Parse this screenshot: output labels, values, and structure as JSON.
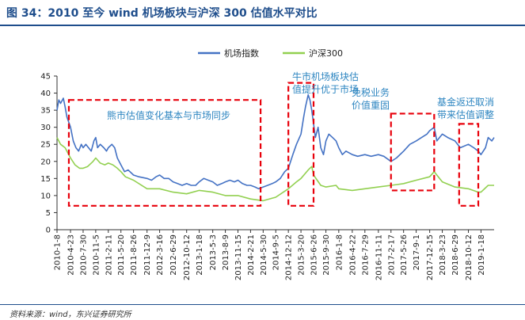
{
  "header": {
    "title": "图 34：2010 至今 wind 机场板块与沪深 300 估值水平对比"
  },
  "footer": {
    "source": "资料来源：wind，东兴证券研究所"
  },
  "chart_data": {
    "type": "line",
    "title": "图 34：2010 至今 wind 机场板块与沪深 300 估值水平对比",
    "xlabel": "",
    "ylabel": "",
    "ylim": [
      0,
      45
    ],
    "yticks": [
      0,
      5,
      10,
      15,
      20,
      25,
      30,
      35,
      40,
      45
    ],
    "grid": false,
    "legend": "top-center",
    "x_tick_labels": [
      "2010-1-8",
      "2010-4-23",
      "2010-7-30",
      "2010-11-5",
      "2011-2-11",
      "2011-5-20",
      "2011-8-26",
      "2011-12-9",
      "2012-3-16",
      "2012-6-29",
      "2012-10-12",
      "2013-1-18",
      "2013-5-3",
      "2013-8-9",
      "2013-11-15",
      "2014-2-21",
      "2014-5-30",
      "2014-9-5",
      "2014-12-12",
      "2015-3-20",
      "2015-6-26",
      "2015-9-30",
      "2016-1-8",
      "2016-4-22",
      "2016-7-29",
      "2016-11-11",
      "2017-2-17",
      "2017-5-26",
      "2017-9-1",
      "2017-12-15",
      "2018-3-23",
      "2018-6-29",
      "2018-10-12",
      "2019-1-18"
    ],
    "x_end": "2019-4-30",
    "series": [
      {
        "name": "机场指数",
        "color": "#4472c4",
        "points": [
          [
            "2010-1-8",
            35
          ],
          [
            "2010-1-22",
            38
          ],
          [
            "2010-2-5",
            37
          ],
          [
            "2010-2-26",
            38.5
          ],
          [
            "2010-3-12",
            36
          ],
          [
            "2010-3-26",
            33
          ],
          [
            "2010-4-23",
            30
          ],
          [
            "2010-5-14",
            26
          ],
          [
            "2010-6-4",
            24
          ],
          [
            "2010-6-25",
            23
          ],
          [
            "2010-7-16",
            25
          ],
          [
            "2010-7-30",
            24
          ],
          [
            "2010-8-20",
            25
          ],
          [
            "2010-9-10",
            24
          ],
          [
            "2010-10-1",
            23
          ],
          [
            "2010-10-22",
            26
          ],
          [
            "2010-11-5",
            27
          ],
          [
            "2010-11-19",
            24
          ],
          [
            "2010-12-10",
            25
          ],
          [
            "2011-1-7",
            24
          ],
          [
            "2011-1-28",
            23
          ],
          [
            "2011-2-11",
            24
          ],
          [
            "2011-3-11",
            25
          ],
          [
            "2011-4-1",
            24
          ],
          [
            "2011-4-22",
            21
          ],
          [
            "2011-5-20",
            19
          ],
          [
            "2011-6-17",
            17
          ],
          [
            "2011-7-15",
            17.5
          ],
          [
            "2011-8-26",
            16
          ],
          [
            "2011-10-7",
            15.5
          ],
          [
            "2011-12-9",
            15
          ],
          [
            "2012-1-13",
            14.5
          ],
          [
            "2012-2-17",
            15.5
          ],
          [
            "2012-3-16",
            16
          ],
          [
            "2012-4-20",
            15
          ],
          [
            "2012-5-25",
            15
          ],
          [
            "2012-6-29",
            14
          ],
          [
            "2012-8-3",
            13.5
          ],
          [
            "2012-9-7",
            13
          ],
          [
            "2012-10-12",
            13.5
          ],
          [
            "2012-11-16",
            13
          ],
          [
            "2012-12-21",
            13
          ],
          [
            "2013-1-18",
            14
          ],
          [
            "2013-2-22",
            15
          ],
          [
            "2013-3-29",
            14.5
          ],
          [
            "2013-5-3",
            14
          ],
          [
            "2013-6-7",
            13
          ],
          [
            "2013-7-12",
            13.5
          ],
          [
            "2013-8-9",
            14
          ],
          [
            "2013-9-13",
            14.5
          ],
          [
            "2013-10-18",
            14
          ],
          [
            "2013-11-15",
            14.5
          ],
          [
            "2013-12-20",
            13.5
          ],
          [
            "2014-1-24",
            13
          ],
          [
            "2014-2-21",
            13
          ],
          [
            "2014-3-28",
            12.5
          ],
          [
            "2014-4-25",
            12
          ],
          [
            "2014-5-30",
            12.5
          ],
          [
            "2014-7-4",
            13
          ],
          [
            "2014-8-8",
            13.5
          ],
          [
            "2014-9-5",
            14
          ],
          [
            "2014-10-10",
            15
          ],
          [
            "2014-11-14",
            17
          ],
          [
            "2014-12-12",
            18
          ],
          [
            "2015-1-16",
            22
          ],
          [
            "2015-2-13",
            25
          ],
          [
            "2015-3-20",
            28
          ],
          [
            "2015-4-10",
            33
          ],
          [
            "2015-4-24",
            36
          ],
          [
            "2015-5-15",
            39.5
          ],
          [
            "2015-5-29",
            38
          ],
          [
            "2015-6-12",
            35
          ],
          [
            "2015-6-26",
            31
          ],
          [
            "2015-7-10",
            27
          ],
          [
            "2015-7-31",
            30
          ],
          [
            "2015-8-21",
            24
          ],
          [
            "2015-9-11",
            22
          ],
          [
            "2015-9-30",
            26
          ],
          [
            "2015-10-23",
            28
          ],
          [
            "2015-11-20",
            27
          ],
          [
            "2015-12-18",
            26
          ],
          [
            "2016-1-8",
            24
          ],
          [
            "2016-2-5",
            22
          ],
          [
            "2016-3-4",
            23
          ],
          [
            "2016-4-22",
            22
          ],
          [
            "2016-6-3",
            21.5
          ],
          [
            "2016-7-29",
            22
          ],
          [
            "2016-9-16",
            21.5
          ],
          [
            "2016-11-11",
            22
          ],
          [
            "2016-12-23",
            21.5
          ],
          [
            "2017-2-17",
            20
          ],
          [
            "2017-3-31",
            21
          ],
          [
            "2017-5-26",
            23
          ],
          [
            "2017-7-14",
            25
          ],
          [
            "2017-9-1",
            26
          ],
          [
            "2017-10-13",
            27
          ],
          [
            "2017-11-24",
            28
          ],
          [
            "2017-12-15",
            29
          ],
          [
            "2018-1-19",
            30
          ],
          [
            "2018-2-9",
            26
          ],
          [
            "2018-3-23",
            28
          ],
          [
            "2018-5-4",
            27
          ],
          [
            "2018-6-29",
            26
          ],
          [
            "2018-8-10",
            24
          ],
          [
            "2018-10-12",
            25
          ],
          [
            "2018-11-23",
            24
          ],
          [
            "2018-12-28",
            23
          ],
          [
            "2019-1-18",
            22
          ],
          [
            "2019-2-22",
            24
          ],
          [
            "2019-3-15",
            27
          ],
          [
            "2019-4-12",
            26
          ],
          [
            "2019-4-30",
            27
          ]
        ]
      },
      {
        "name": "沪深300",
        "color": "#92d050",
        "points": [
          [
            "2010-1-8",
            27
          ],
          [
            "2010-2-5",
            25
          ],
          [
            "2010-3-12",
            24
          ],
          [
            "2010-4-23",
            21
          ],
          [
            "2010-5-28",
            19
          ],
          [
            "2010-7-2",
            18
          ],
          [
            "2010-7-30",
            18
          ],
          [
            "2010-9-3",
            18.5
          ],
          [
            "2010-10-15",
            20
          ],
          [
            "2010-11-5",
            21
          ],
          [
            "2010-12-10",
            19.5
          ],
          [
            "2011-1-14",
            19
          ],
          [
            "2011-2-11",
            19.5
          ],
          [
            "2011-3-18",
            19
          ],
          [
            "2011-4-22",
            18
          ],
          [
            "2011-5-20",
            17
          ],
          [
            "2011-6-24",
            15.5
          ],
          [
            "2011-8-26",
            14.5
          ],
          [
            "2011-12-9",
            12
          ],
          [
            "2012-3-16",
            12
          ],
          [
            "2012-6-29",
            11
          ],
          [
            "2012-10-12",
            10.5
          ],
          [
            "2013-1-18",
            11.5
          ],
          [
            "2013-5-3",
            11
          ],
          [
            "2013-8-9",
            10
          ],
          [
            "2013-11-15",
            10
          ],
          [
            "2014-2-21",
            9
          ],
          [
            "2014-5-30",
            8.5
          ],
          [
            "2014-9-5",
            9.5
          ],
          [
            "2014-12-12",
            12
          ],
          [
            "2015-2-13",
            14
          ],
          [
            "2015-3-20",
            15
          ],
          [
            "2015-5-15",
            17.5
          ],
          [
            "2015-6-12",
            18.5
          ],
          [
            "2015-6-26",
            16
          ],
          [
            "2015-8-21",
            13
          ],
          [
            "2015-9-30",
            12.5
          ],
          [
            "2015-12-18",
            13
          ],
          [
            "2016-1-8",
            12
          ],
          [
            "2016-4-22",
            11.5
          ],
          [
            "2016-7-29",
            12
          ],
          [
            "2016-11-11",
            12.5
          ],
          [
            "2017-2-17",
            13
          ],
          [
            "2017-5-26",
            13.5
          ],
          [
            "2017-9-1",
            14.5
          ],
          [
            "2017-12-15",
            15.5
          ],
          [
            "2018-1-19",
            17
          ],
          [
            "2018-3-23",
            14
          ],
          [
            "2018-6-29",
            12.5
          ],
          [
            "2018-10-12",
            12
          ],
          [
            "2018-12-28",
            11
          ],
          [
            "2019-1-18",
            11
          ],
          [
            "2019-3-15",
            13
          ],
          [
            "2019-4-30",
            13
          ]
        ]
      }
    ],
    "annotations": [
      {
        "text": [
          "熊市估值变化基本与市场同步"
        ],
        "box": [
          "2010-4-10",
          7,
          "2014-5-10",
          38
        ]
      },
      {
        "text": [
          "牛市机场板块估",
          "值提升优于市场"
        ],
        "box": [
          "2014-12-12",
          7,
          "2015-6-26",
          43
        ]
      },
      {
        "text": [
          "免税业务",
          "价值重固"
        ],
        "box": [
          "2017-2-17",
          11.5,
          "2018-1-19",
          34
        ]
      },
      {
        "text": [
          "基金返还取消",
          "带来估值调整"
        ],
        "box": [
          "2018-8-1",
          7,
          "2018-12-28",
          31
        ]
      }
    ]
  }
}
